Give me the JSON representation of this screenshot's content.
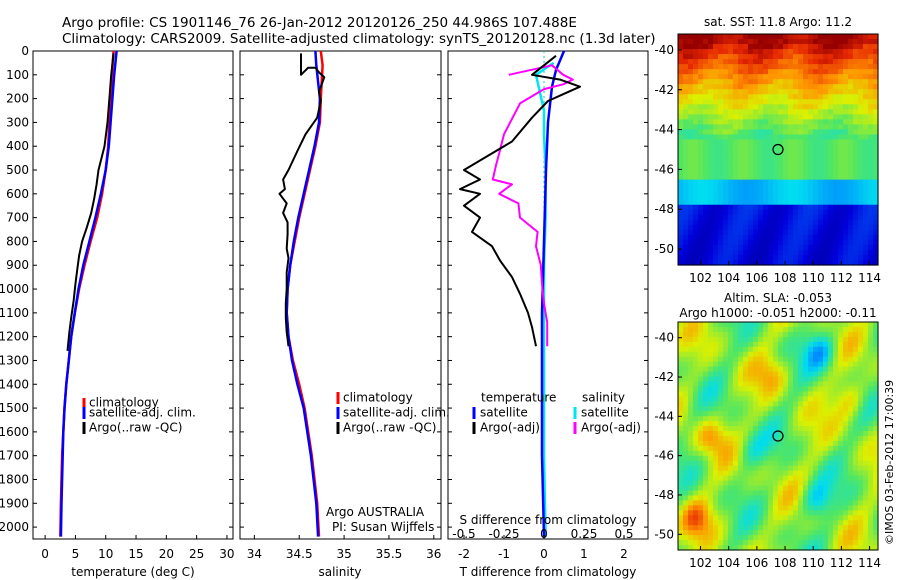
{
  "header": {
    "line1": "Argo profile: CS 1901146_76 26-Jan-2012 20120126_250 44.986S 107.488E",
    "line2": "Climatology: CARS2009. Satellite-adjusted climatology: synTS_20120128.nc (1.3d later)"
  },
  "colors": {
    "climatology": "#ff0000",
    "satellite": "#0000ff",
    "argo": "#000000",
    "sat_salinity": "#00e5ee",
    "argo_salinity": "#ff00ff"
  },
  "depth_axis": {
    "ticks": [
      "0",
      "100",
      "200",
      "300",
      "400",
      "500",
      "600",
      "700",
      "800",
      "900",
      "1000",
      "1100",
      "1200",
      "1300",
      "1400",
      "1500",
      "1600",
      "1700",
      "1800",
      "1900",
      "2000"
    ]
  },
  "temp_panel": {
    "xlabel": "temperature (deg C)",
    "ticks": [
      "0",
      "5",
      "10",
      "15",
      "20",
      "25",
      "30"
    ],
    "legend": [
      "climatology",
      "satellite-adj. clim.",
      "Argo(..raw -QC)"
    ]
  },
  "sal_panel": {
    "xlabel": "salinity",
    "ticks": [
      "34",
      "34.5",
      "35",
      "35.5",
      "36"
    ],
    "legend": [
      "climatology",
      "satellite-adj. clim.",
      "Argo(..raw -QC)"
    ],
    "note1": "Argo AUSTRALIA",
    "note2": "PI: Susan Wijffels"
  },
  "diff_panel": {
    "t_ticks": [
      "-2",
      "-1",
      "0",
      "1",
      "2"
    ],
    "s_ticks": [
      "-0.5",
      "-0.25",
      "0",
      "0.25",
      "0.5"
    ],
    "t_label": "T difference from climatology",
    "s_label": "S difference from climatology",
    "legend_temp": [
      "temperature",
      "satellite",
      "Argo(-adj)"
    ],
    "legend_sal": [
      "salinity",
      "satellite",
      "Argo(-adj)"
    ]
  },
  "sst_map": {
    "title": "sat. SST: 11.8 Argo: 11.2",
    "lat_ticks": [
      "-40",
      "-42",
      "-44",
      "-46",
      "-48",
      "-50"
    ],
    "lon_ticks": [
      "102",
      "104",
      "106",
      "108",
      "110",
      "112",
      "114"
    ]
  },
  "sla_map": {
    "title1": "Altim. SLA: -0.053",
    "title2": "Argo h1000: -0.051 h2000: -0.11",
    "lat_ticks": [
      "-40",
      "-42",
      "-44",
      "-46",
      "-48",
      "-50"
    ],
    "lon_ticks": [
      "102",
      "104",
      "106",
      "108",
      "110",
      "112",
      "114"
    ]
  },
  "credit": "©IMOS 03-Feb-2012 17:00:39",
  "chart_data": [
    {
      "type": "line",
      "title": "",
      "xlabel": "temperature (deg C)",
      "ylabel": "",
      "xlim": [
        -2,
        31
      ],
      "ylim": [
        2050,
        0
      ],
      "series": [
        {
          "name": "climatology",
          "points": [
            [
              11.3,
              0
            ],
            [
              11.0,
              100
            ],
            [
              10.8,
              200
            ],
            [
              10.6,
              300
            ],
            [
              10.4,
              400
            ],
            [
              10.0,
              500
            ],
            [
              9.4,
              600
            ],
            [
              8.6,
              700
            ],
            [
              7.5,
              800
            ],
            [
              6.5,
              900
            ],
            [
              5.6,
              1000
            ],
            [
              4.9,
              1100
            ],
            [
              4.3,
              1200
            ],
            [
              3.9,
              1300
            ],
            [
              3.5,
              1400
            ],
            [
              3.2,
              1500
            ],
            [
              3.0,
              1600
            ],
            [
              2.8,
              1700
            ],
            [
              2.7,
              1800
            ],
            [
              2.6,
              1900
            ],
            [
              2.5,
              2040
            ]
          ]
        },
        {
          "name": "satellite-adj. clim.",
          "points": [
            [
              11.8,
              0
            ],
            [
              11.4,
              100
            ],
            [
              11.1,
              200
            ],
            [
              10.8,
              300
            ],
            [
              10.5,
              400
            ],
            [
              10.0,
              500
            ],
            [
              9.2,
              600
            ],
            [
              8.3,
              700
            ],
            [
              7.3,
              800
            ],
            [
              6.3,
              900
            ],
            [
              5.5,
              1000
            ],
            [
              4.9,
              1100
            ],
            [
              4.3,
              1200
            ],
            [
              3.9,
              1300
            ],
            [
              3.5,
              1400
            ],
            [
              3.2,
              1500
            ],
            [
              3.0,
              1600
            ],
            [
              2.9,
              1700
            ],
            [
              2.8,
              1800
            ],
            [
              2.7,
              1900
            ],
            [
              2.6,
              2040
            ]
          ]
        },
        {
          "name": "Argo(..raw -QC)",
          "points": [
            [
              11.3,
              10
            ],
            [
              10.9,
              100
            ],
            [
              10.6,
              200
            ],
            [
              10.3,
              300
            ],
            [
              9.8,
              400
            ],
            [
              9.3,
              450
            ],
            [
              8.8,
              500
            ],
            [
              8.5,
              560
            ],
            [
              8.1,
              620
            ],
            [
              7.6,
              680
            ],
            [
              6.9,
              740
            ],
            [
              6.1,
              800
            ],
            [
              5.6,
              860
            ],
            [
              5.3,
              920
            ],
            [
              5.0,
              980
            ],
            [
              4.7,
              1050
            ],
            [
              4.3,
              1120
            ],
            [
              4.0,
              1180
            ],
            [
              3.7,
              1260
            ]
          ]
        }
      ]
    },
    {
      "type": "line",
      "title": "",
      "xlabel": "salinity",
      "ylabel": "",
      "xlim": [
        33.84,
        36.08
      ],
      "ylim": [
        2050,
        0
      ],
      "series": [
        {
          "name": "climatology",
          "points": [
            [
              34.74,
              0
            ],
            [
              34.76,
              60
            ],
            [
              34.75,
              130
            ],
            [
              34.74,
              200
            ],
            [
              34.73,
              300
            ],
            [
              34.68,
              400
            ],
            [
              34.62,
              500
            ],
            [
              34.56,
              600
            ],
            [
              34.5,
              700
            ],
            [
              34.45,
              800
            ],
            [
              34.4,
              900
            ],
            [
              34.37,
              1000
            ],
            [
              34.36,
              1100
            ],
            [
              34.38,
              1200
            ],
            [
              34.43,
              1300
            ],
            [
              34.5,
              1400
            ],
            [
              34.56,
              1500
            ],
            [
              34.6,
              1600
            ],
            [
              34.64,
              1700
            ],
            [
              34.67,
              1800
            ],
            [
              34.7,
              1900
            ],
            [
              34.72,
              2040
            ]
          ]
        },
        {
          "name": "satellite-adj. clim.",
          "points": [
            [
              34.68,
              0
            ],
            [
              34.69,
              60
            ],
            [
              34.71,
              130
            ],
            [
              34.73,
              200
            ],
            [
              34.72,
              300
            ],
            [
              34.67,
              400
            ],
            [
              34.61,
              500
            ],
            [
              34.55,
              600
            ],
            [
              34.49,
              700
            ],
            [
              34.44,
              800
            ],
            [
              34.4,
              900
            ],
            [
              34.37,
              1000
            ],
            [
              34.36,
              1100
            ],
            [
              34.38,
              1200
            ],
            [
              34.42,
              1300
            ],
            [
              34.48,
              1400
            ],
            [
              34.55,
              1500
            ],
            [
              34.59,
              1600
            ],
            [
              34.63,
              1700
            ],
            [
              34.66,
              1800
            ],
            [
              34.69,
              1900
            ],
            [
              34.71,
              2040
            ]
          ]
        },
        {
          "name": "Argo(..raw -QC)",
          "points": [
            [
              34.52,
              10
            ],
            [
              34.52,
              100
            ],
            [
              34.6,
              70
            ],
            [
              34.68,
              70
            ],
            [
              34.72,
              90
            ],
            [
              34.78,
              110
            ],
            [
              34.75,
              140
            ],
            [
              34.72,
              170
            ],
            [
              34.74,
              210
            ],
            [
              34.7,
              280
            ],
            [
              34.57,
              350
            ],
            [
              34.48,
              420
            ],
            [
              34.38,
              500
            ],
            [
              34.32,
              540
            ],
            [
              34.34,
              580
            ],
            [
              34.28,
              600
            ],
            [
              34.36,
              640
            ],
            [
              34.32,
              680
            ],
            [
              34.37,
              720
            ],
            [
              34.37,
              770
            ],
            [
              34.36,
              830
            ],
            [
              34.38,
              870
            ],
            [
              34.36,
              930
            ],
            [
              34.36,
              1000
            ],
            [
              34.35,
              1060
            ],
            [
              34.35,
              1120
            ],
            [
              34.36,
              1180
            ],
            [
              34.38,
              1240
            ]
          ]
        }
      ]
    },
    {
      "type": "line",
      "title": "",
      "xlabel": "T difference from climatology",
      "ylabel": "",
      "xlim": [
        -2.4,
        2.6
      ],
      "ylim": [
        2050,
        0
      ],
      "series": [
        {
          "name": "temperature satellite",
          "points": [
            [
              0.5,
              0
            ],
            [
              0.3,
              80
            ],
            [
              0.2,
              150
            ],
            [
              0.1,
              300
            ],
            [
              0.05,
              500
            ],
            [
              0.0,
              800
            ],
            [
              -0.05,
              1100
            ],
            [
              -0.05,
              1400
            ],
            [
              -0.05,
              1700
            ],
            [
              0.0,
              2040
            ]
          ]
        },
        {
          "name": "temperature Argo(-adj)",
          "points": [
            [
              0.3,
              20
            ],
            [
              -0.3,
              100
            ],
            [
              0.4,
              120
            ],
            [
              0.9,
              150
            ],
            [
              0.5,
              180
            ],
            [
              0.1,
              210
            ],
            [
              -0.3,
              280
            ],
            [
              -0.8,
              380
            ],
            [
              -1.2,
              420
            ],
            [
              -1.6,
              460
            ],
            [
              -2.0,
              500
            ],
            [
              -1.6,
              540
            ],
            [
              -2.1,
              580
            ],
            [
              -1.6,
              600
            ],
            [
              -2.0,
              650
            ],
            [
              -1.6,
              700
            ],
            [
              -1.8,
              760
            ],
            [
              -1.3,
              820
            ],
            [
              -1.1,
              880
            ],
            [
              -0.8,
              950
            ],
            [
              -0.6,
              1020
            ],
            [
              -0.4,
              1100
            ],
            [
              -0.3,
              1160
            ],
            [
              -0.2,
              1240
            ]
          ]
        }
      ]
    },
    {
      "type": "line",
      "title": "",
      "xlabel": "S difference from climatology",
      "ylabel": "",
      "xlim": [
        -0.6,
        0.65
      ],
      "ylim": [
        2050,
        0
      ],
      "series": [
        {
          "name": "salinity satellite",
          "points": [
            [
              0.06,
              50
            ],
            [
              -0.05,
              100
            ],
            [
              -0.03,
              160
            ],
            [
              0.0,
              250
            ],
            [
              0.0,
              350
            ],
            [
              0.01,
              500
            ],
            [
              0.01,
              700
            ],
            [
              0.0,
              900
            ],
            [
              0.0,
              1100
            ],
            [
              0.0,
              1400
            ],
            [
              0.0,
              1700
            ],
            [
              0.01,
              2040
            ]
          ]
        },
        {
          "name": "salinity Argo(-adj)",
          "points": [
            [
              -0.22,
              100
            ],
            [
              0.05,
              60
            ],
            [
              0.12,
              100
            ],
            [
              0.18,
              120
            ],
            [
              0.12,
              140
            ],
            [
              0.0,
              160
            ],
            [
              -0.15,
              220
            ],
            [
              -0.25,
              350
            ],
            [
              -0.28,
              430
            ],
            [
              -0.3,
              480
            ],
            [
              -0.32,
              540
            ],
            [
              -0.2,
              560
            ],
            [
              -0.28,
              600
            ],
            [
              -0.16,
              640
            ],
            [
              -0.15,
              700
            ],
            [
              -0.04,
              760
            ],
            [
              -0.05,
              820
            ],
            [
              -0.02,
              900
            ],
            [
              -0.01,
              1000
            ],
            [
              0.0,
              1060
            ],
            [
              0.02,
              1140
            ],
            [
              0.02,
              1240
            ]
          ]
        }
      ]
    },
    {
      "type": "heatmap",
      "title": "sat. SST: 11.8 Argo: 11.2",
      "xlabel": "",
      "ylabel": "",
      "xlim": [
        100.4,
        114.6
      ],
      "ylim": [
        -50.8,
        -39.2
      ],
      "argo_position": [
        107.5,
        -45.0
      ]
    },
    {
      "type": "heatmap",
      "title": "Altim. SLA: -0.053",
      "xlabel": "",
      "ylabel": "",
      "xlim": [
        100.4,
        114.6
      ],
      "ylim": [
        -50.8,
        -39.2
      ],
      "argo_position": [
        107.5,
        -45.0
      ]
    }
  ]
}
